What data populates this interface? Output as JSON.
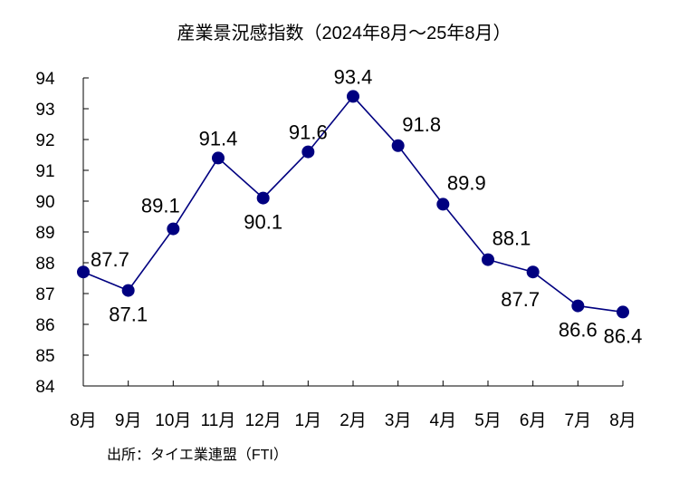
{
  "chart_data": {
    "type": "line",
    "title": "産業景況感指数（2024年8月～25年8月）",
    "xlabel": "",
    "ylabel": "",
    "categories": [
      "8月",
      "9月",
      "10月",
      "11月",
      "12月",
      "1月",
      "2月",
      "3月",
      "4月",
      "5月",
      "6月",
      "7月",
      "8月"
    ],
    "series": [
      {
        "name": "産業景況感指数",
        "values": [
          87.7,
          87.1,
          89.1,
          91.4,
          90.1,
          91.6,
          93.4,
          91.8,
          89.9,
          88.1,
          87.7,
          86.6,
          86.4
        ],
        "color": "#000080"
      }
    ],
    "ylim": [
      84,
      94
    ],
    "yticks": [
      84,
      85,
      86,
      87,
      88,
      89,
      90,
      91,
      92,
      93,
      94
    ],
    "grid": false,
    "legend": "none",
    "label_positions": [
      "right",
      "below",
      "above-left",
      "above",
      "below",
      "above",
      "above",
      "above-right",
      "above-right",
      "above-right",
      "below-left",
      "below",
      "below"
    ]
  },
  "source": "出所：タイエ業連盟（FTI）"
}
